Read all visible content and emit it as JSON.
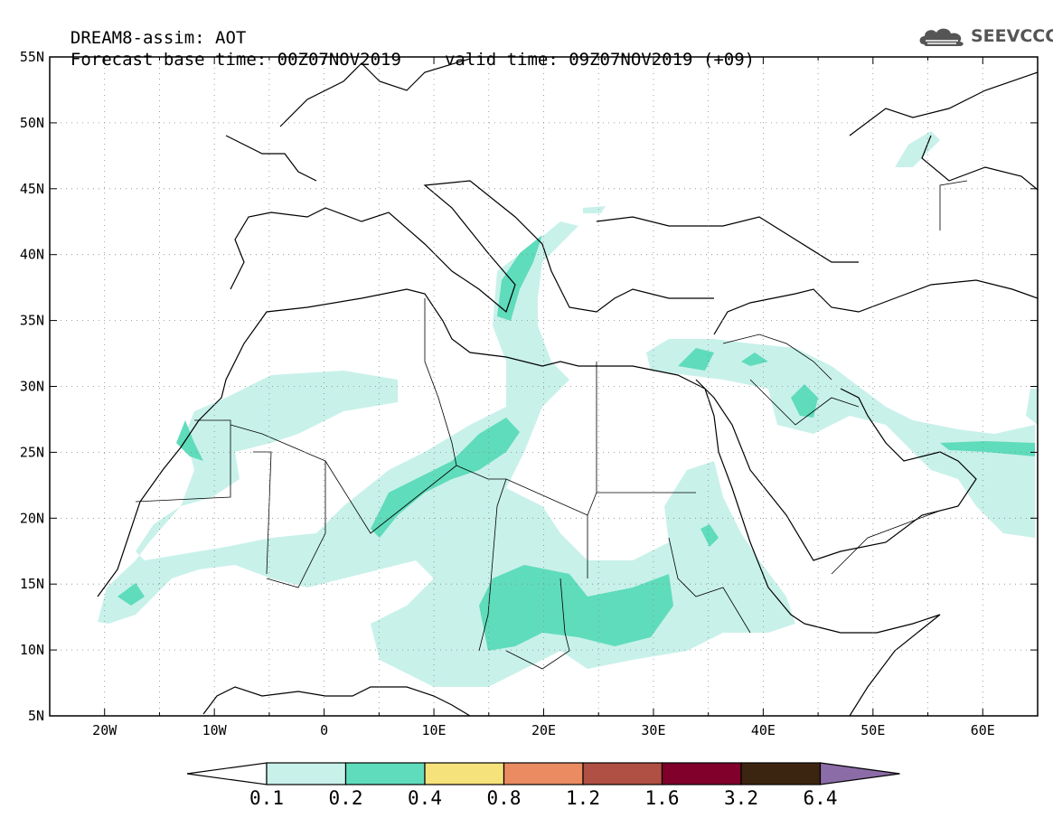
{
  "header": {
    "line1": "DREAM8-assim: AOT",
    "base_time": "Forecast base time: 00Z07NOV2019",
    "valid_time": "valid time: 09Z07NOV2019 (+09)",
    "logo_text": "SEEVCCC",
    "logo_icon": "cloud-icon"
  },
  "map": {
    "lon_range": [
      -25,
      65
    ],
    "lat_range": [
      5,
      55
    ],
    "lon_ticks": [
      {
        "value": -20,
        "label": "20W"
      },
      {
        "value": -10,
        "label": "10W"
      },
      {
        "value": 0,
        "label": "0"
      },
      {
        "value": 10,
        "label": "10E"
      },
      {
        "value": 20,
        "label": "20E"
      },
      {
        "value": 30,
        "label": "30E"
      },
      {
        "value": 40,
        "label": "40E"
      },
      {
        "value": 50,
        "label": "50E"
      },
      {
        "value": 60,
        "label": "60E"
      }
    ],
    "lat_ticks": [
      {
        "value": 55,
        "label": "55N"
      },
      {
        "value": 50,
        "label": "50N"
      },
      {
        "value": 45,
        "label": "45N"
      },
      {
        "value": 40,
        "label": "40N"
      },
      {
        "value": 35,
        "label": "35N"
      },
      {
        "value": 30,
        "label": "30N"
      },
      {
        "value": 25,
        "label": "25N"
      },
      {
        "value": 20,
        "label": "20N"
      },
      {
        "value": 15,
        "label": "15N"
      },
      {
        "value": 10,
        "label": "10N"
      },
      {
        "value": 5,
        "label": "5N"
      }
    ],
    "grid": "dotted",
    "colors": {
      "low": "#c8f1ea",
      "mid": "#5fdcbb",
      "coast": "#000000"
    }
  },
  "colorbar": {
    "colors": [
      "#ffffff",
      "#c8f1ea",
      "#5fdcbb",
      "#f6e27a",
      "#ea8b62",
      "#b04f43",
      "#80002b",
      "#3c2510",
      "#8c6ca6"
    ],
    "labels": [
      "0.1",
      "0.2",
      "0.4",
      "0.8",
      "1.2",
      "1.6",
      "3.2",
      "6.4"
    ]
  }
}
